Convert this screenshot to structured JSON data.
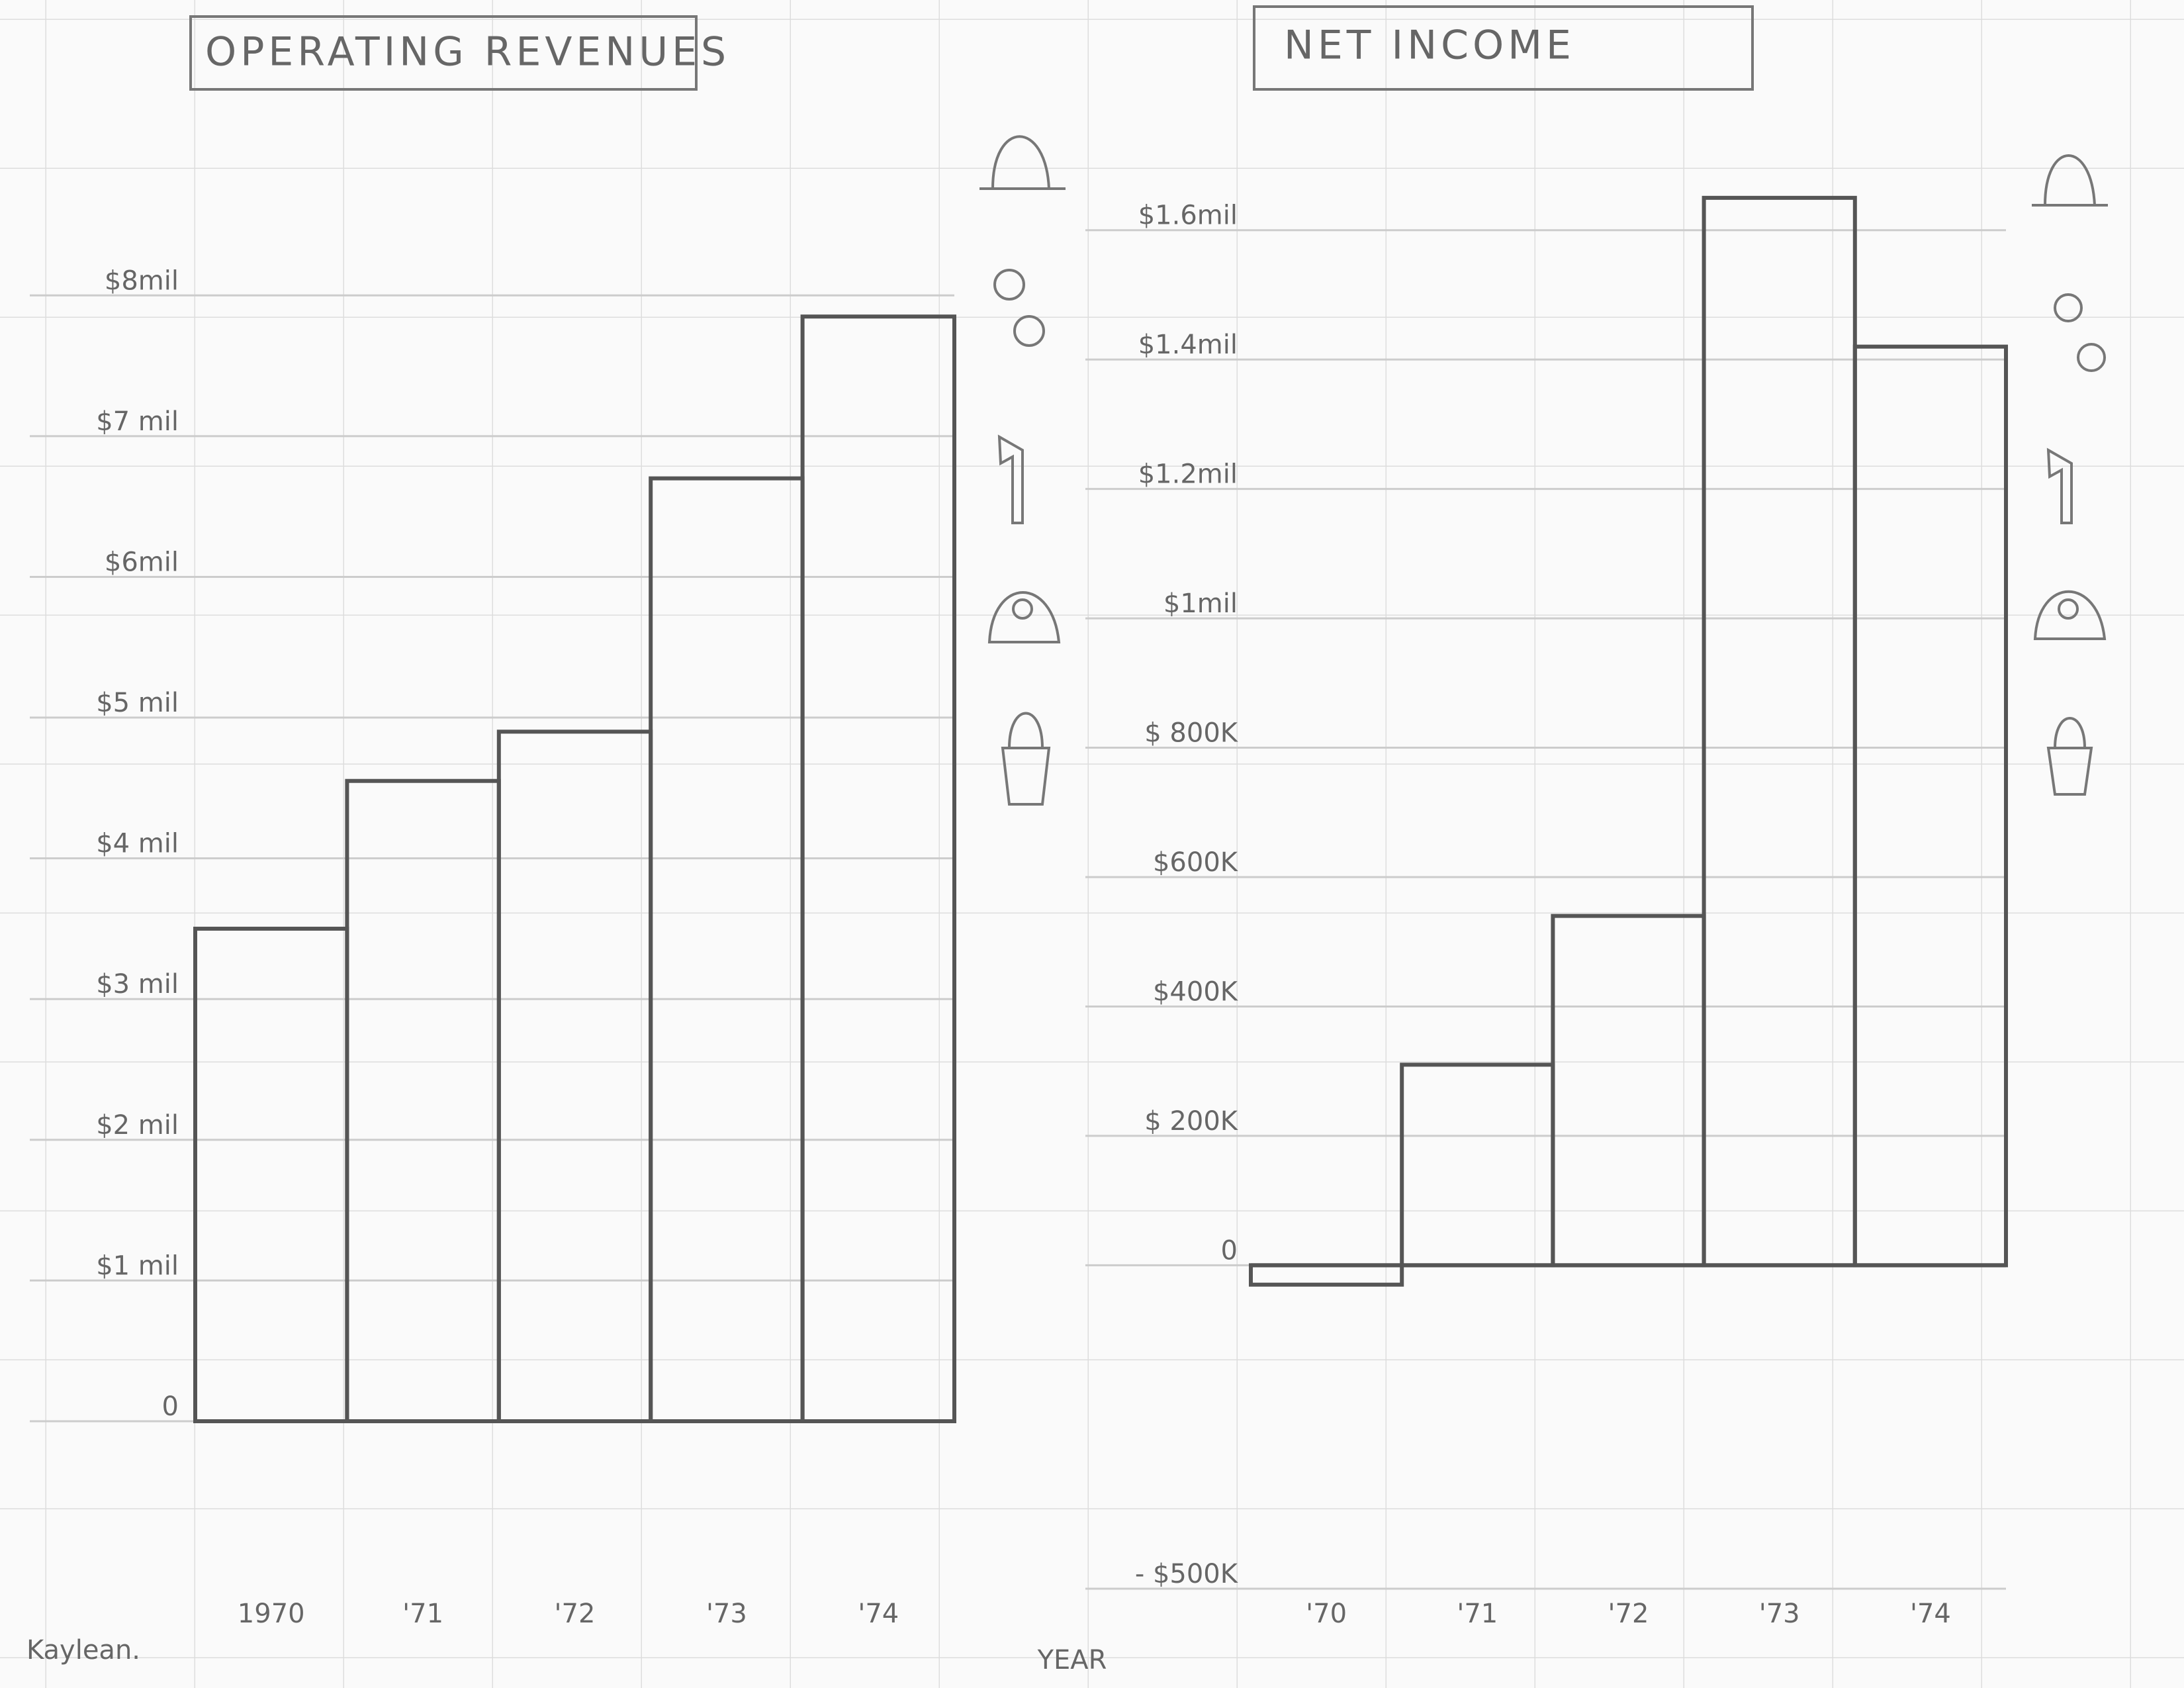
{
  "chart_data": [
    {
      "type": "bar",
      "title": "OPERATING REVENUES",
      "categories": [
        "1970",
        "'71",
        "'72",
        "'73",
        "'74"
      ],
      "values": [
        3.5,
        4.55,
        4.9,
        6.7,
        7.85
      ],
      "color": "#555555",
      "ylim": [
        0,
        8.5
      ],
      "yticks": [
        {
          "value": 0,
          "label": "0"
        },
        {
          "value": 1,
          "label": "$1 mil"
        },
        {
          "value": 2,
          "label": "$2 mil"
        },
        {
          "value": 3,
          "label": "$3 mil"
        },
        {
          "value": 4,
          "label": "$4 mil"
        },
        {
          "value": 5,
          "label": "$5 mil"
        },
        {
          "value": 6,
          "label": "$6mil"
        },
        {
          "value": 7,
          "label": "$7 mil"
        },
        {
          "value": 8,
          "label": "$8mil"
        }
      ],
      "grid": true
    },
    {
      "type": "bar",
      "title": "NET INCOME",
      "categories": [
        "'70",
        "'71",
        "'72",
        "'73",
        "'74"
      ],
      "values": [
        -30000,
        310000,
        540000,
        1650000,
        1420000
      ],
      "color": "#555555",
      "ylim": [
        -500000,
        1700000
      ],
      "yticks": [
        {
          "value": -500000,
          "label": "- $500K"
        },
        {
          "value": 0,
          "label": "0"
        },
        {
          "value": 200000,
          "label": "$ 200K"
        },
        {
          "value": 400000,
          "label": "$400K"
        },
        {
          "value": 600000,
          "label": "$600K"
        },
        {
          "value": 800000,
          "label": "$ 800K"
        },
        {
          "value": 1000000,
          "label": "$1mil"
        },
        {
          "value": 1200000,
          "label": "$1.2mil"
        },
        {
          "value": 1400000,
          "label": "$1.4mil"
        },
        {
          "value": 1600000,
          "label": "$1.6mil"
        }
      ],
      "grid": true
    }
  ],
  "x_label": "YEAR",
  "author": "Kaylean."
}
